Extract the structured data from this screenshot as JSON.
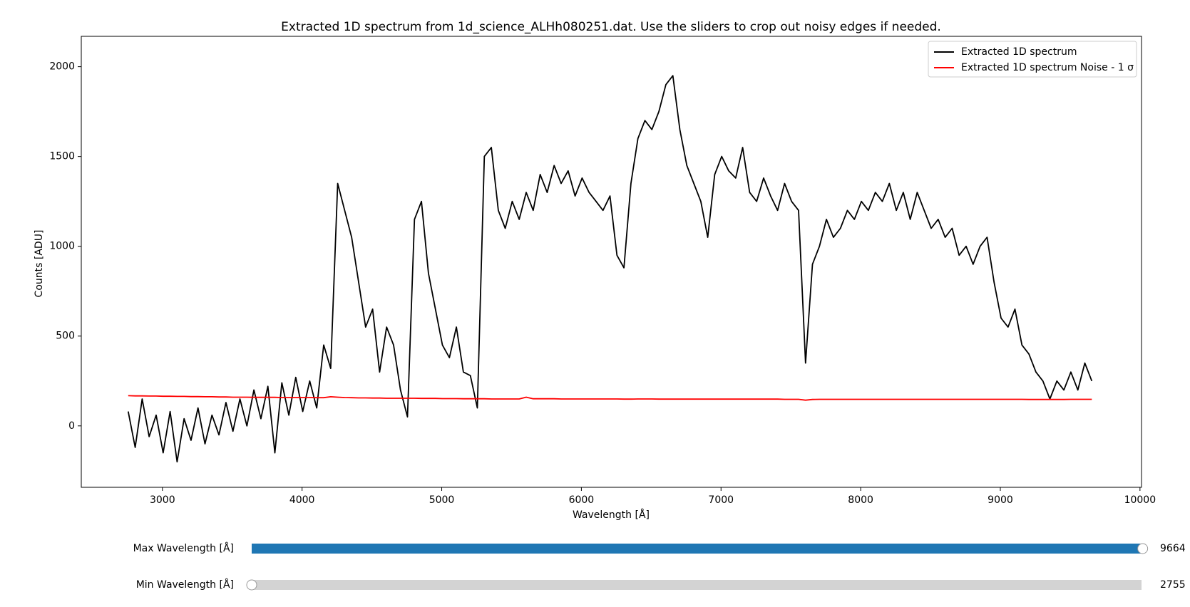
{
  "chart_data": {
    "type": "line",
    "title": "Extracted 1D spectrum from 1d_science_ALHh080251.dat. Use the sliders to crop out noisy edges if needed.",
    "x_label": "Wavelength [Å]",
    "y_label": "Counts [ADU]",
    "x": [
      2755,
      2805,
      2855,
      2905,
      2955,
      3005,
      3055,
      3105,
      3155,
      3205,
      3255,
      3305,
      3355,
      3405,
      3455,
      3505,
      3555,
      3605,
      3655,
      3705,
      3755,
      3805,
      3855,
      3905,
      3955,
      4005,
      4055,
      4105,
      4155,
      4205,
      4255,
      4305,
      4355,
      4405,
      4455,
      4505,
      4555,
      4605,
      4655,
      4705,
      4755,
      4805,
      4855,
      4905,
      4955,
      5005,
      5055,
      5105,
      5155,
      5205,
      5255,
      5305,
      5355,
      5405,
      5455,
      5505,
      5555,
      5605,
      5655,
      5705,
      5755,
      5805,
      5855,
      5905,
      5955,
      6005,
      6055,
      6105,
      6155,
      6205,
      6255,
      6305,
      6355,
      6405,
      6455,
      6505,
      6555,
      6605,
      6655,
      6705,
      6755,
      6805,
      6855,
      6905,
      6955,
      7005,
      7055,
      7105,
      7155,
      7205,
      7255,
      7305,
      7355,
      7405,
      7455,
      7505,
      7555,
      7605,
      7655,
      7705,
      7755,
      7805,
      7855,
      7905,
      7955,
      8005,
      8055,
      8105,
      8155,
      8205,
      8255,
      8305,
      8355,
      8405,
      8455,
      8505,
      8555,
      8605,
      8655,
      8705,
      8755,
      8805,
      8855,
      8905,
      8955,
      9005,
      9055,
      9105,
      9155,
      9205,
      9255,
      9305,
      9355,
      9405,
      9455,
      9505,
      9555,
      9605,
      9655
    ],
    "series": [
      {
        "name": "Extracted 1D spectrum",
        "color": "#000000",
        "values": [
          80,
          -120,
          150,
          -60,
          60,
          -150,
          80,
          -200,
          40,
          -80,
          100,
          -100,
          60,
          -50,
          130,
          -30,
          150,
          0,
          200,
          40,
          220,
          -150,
          240,
          60,
          270,
          80,
          250,
          100,
          450,
          320,
          1350,
          1200,
          1050,
          800,
          550,
          650,
          300,
          550,
          450,
          200,
          50,
          1150,
          1250,
          850,
          650,
          450,
          380,
          550,
          300,
          280,
          100,
          1500,
          1550,
          1200,
          1100,
          1250,
          1150,
          1300,
          1200,
          1400,
          1300,
          1450,
          1350,
          1420,
          1280,
          1380,
          1300,
          1250,
          1200,
          1280,
          950,
          880,
          1350,
          1600,
          1700,
          1650,
          1750,
          1900,
          1950,
          1650,
          1450,
          1350,
          1250,
          1050,
          1400,
          1500,
          1420,
          1380,
          1550,
          1300,
          1250,
          1380,
          1280,
          1200,
          1350,
          1250,
          1200,
          350,
          900,
          1000,
          1150,
          1050,
          1100,
          1200,
          1150,
          1250,
          1200,
          1300,
          1250,
          1350,
          1200,
          1300,
          1150,
          1300,
          1200,
          1100,
          1150,
          1050,
          1100,
          950,
          1000,
          900,
          1000,
          1050,
          800,
          600,
          550,
          650,
          450,
          400,
          300,
          250,
          150,
          250,
          200,
          300,
          200,
          350,
          250
        ]
      },
      {
        "name": "Extracted 1D spectrum Noise - 1 σ",
        "color": "#ff0000",
        "values": [
          168,
          167,
          167,
          166,
          166,
          165,
          165,
          164,
          164,
          163,
          163,
          162,
          162,
          161,
          161,
          160,
          160,
          160,
          159,
          159,
          159,
          159,
          158,
          158,
          158,
          158,
          158,
          157,
          157,
          162,
          160,
          158,
          157,
          156,
          156,
          155,
          155,
          154,
          154,
          154,
          154,
          154,
          153,
          153,
          153,
          152,
          152,
          152,
          151,
          151,
          151,
          151,
          150,
          150,
          150,
          150,
          150,
          160,
          151,
          151,
          151,
          151,
          150,
          150,
          150,
          150,
          150,
          150,
          150,
          150,
          150,
          149,
          149,
          150,
          150,
          150,
          149,
          149,
          149,
          149,
          149,
          149,
          149,
          149,
          149,
          149,
          149,
          149,
          149,
          149,
          149,
          149,
          149,
          149,
          148,
          148,
          148,
          143,
          147,
          148,
          148,
          148,
          148,
          148,
          148,
          148,
          148,
          148,
          148,
          148,
          148,
          148,
          148,
          148,
          148,
          148,
          148,
          148,
          148,
          148,
          148,
          148,
          148,
          148,
          148,
          148,
          148,
          148,
          148,
          147,
          147,
          147,
          147,
          147,
          147,
          148,
          148,
          148,
          148
        ]
      }
    ],
    "xlim": [
      2419,
      10011
    ],
    "ylim": [
      -342,
      2169
    ],
    "xticks": [
      3000,
      4000,
      5000,
      6000,
      7000,
      8000,
      9000,
      10000
    ],
    "yticks": [
      0,
      500,
      1000,
      1500,
      2000
    ],
    "legend": "upper right"
  },
  "sliders": [
    {
      "label": "Max Wavelength [Å]",
      "value": 9664,
      "color": "#1f77b4"
    },
    {
      "label": "Min Wavelength [Å]",
      "value": 2755,
      "color": "#1f77b4"
    }
  ]
}
